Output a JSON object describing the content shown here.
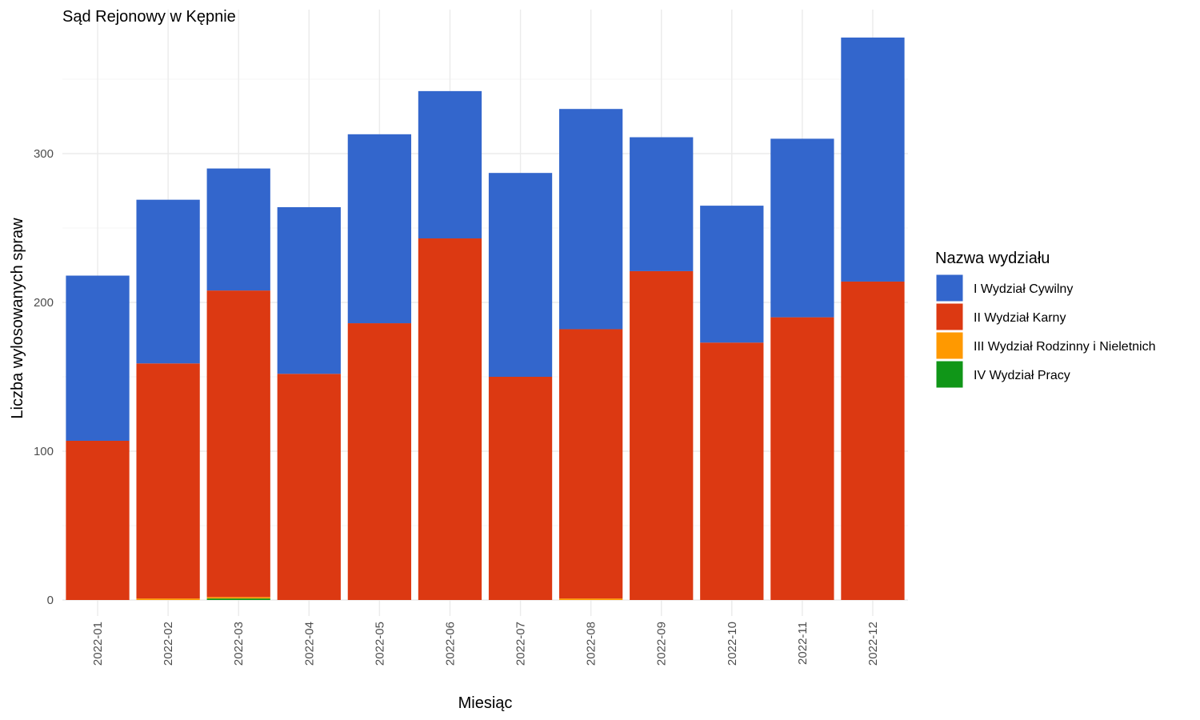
{
  "chart_data": {
    "type": "bar",
    "stacked": true,
    "title": "Sąd Rejonowy w Kępnie",
    "xlabel": "Miesiąc",
    "ylabel": "Liczba wylosowanych spraw",
    "ylim": [
      0,
      380
    ],
    "y_ticks": [
      0,
      100,
      200,
      300
    ],
    "grid": true,
    "legend_title": "Nazwa wydziału",
    "legend_position": "right",
    "categories": [
      "2022-01",
      "2022-02",
      "2022-03",
      "2022-04",
      "2022-05",
      "2022-06",
      "2022-07",
      "2022-08",
      "2022-09",
      "2022-10",
      "2022-11",
      "2022-12"
    ],
    "series": [
      {
        "name": "IV Wydział Pracy",
        "color": "#109618",
        "values": [
          0,
          0,
          1,
          0,
          0,
          0,
          0,
          0,
          0,
          0,
          0,
          0
        ]
      },
      {
        "name": "III Wydział Rodzinny i Nieletnich",
        "color": "#FF9900",
        "values": [
          0,
          1,
          1,
          0,
          0,
          0,
          0,
          1,
          0,
          0,
          0,
          0
        ]
      },
      {
        "name": "II Wydział Karny",
        "color": "#DC3912",
        "values": [
          107,
          158,
          206,
          152,
          186,
          243,
          150,
          181,
          221,
          173,
          190,
          214
        ]
      },
      {
        "name": "I Wydział Cywilny",
        "color": "#3366CC",
        "values": [
          111,
          110,
          82,
          112,
          127,
          99,
          137,
          148,
          90,
          92,
          120,
          164
        ]
      }
    ],
    "legend_order": [
      "I Wydział Cywilny",
      "II Wydział Karny",
      "III Wydział Rodzinny i Nieletnich",
      "IV Wydział Pracy"
    ]
  }
}
